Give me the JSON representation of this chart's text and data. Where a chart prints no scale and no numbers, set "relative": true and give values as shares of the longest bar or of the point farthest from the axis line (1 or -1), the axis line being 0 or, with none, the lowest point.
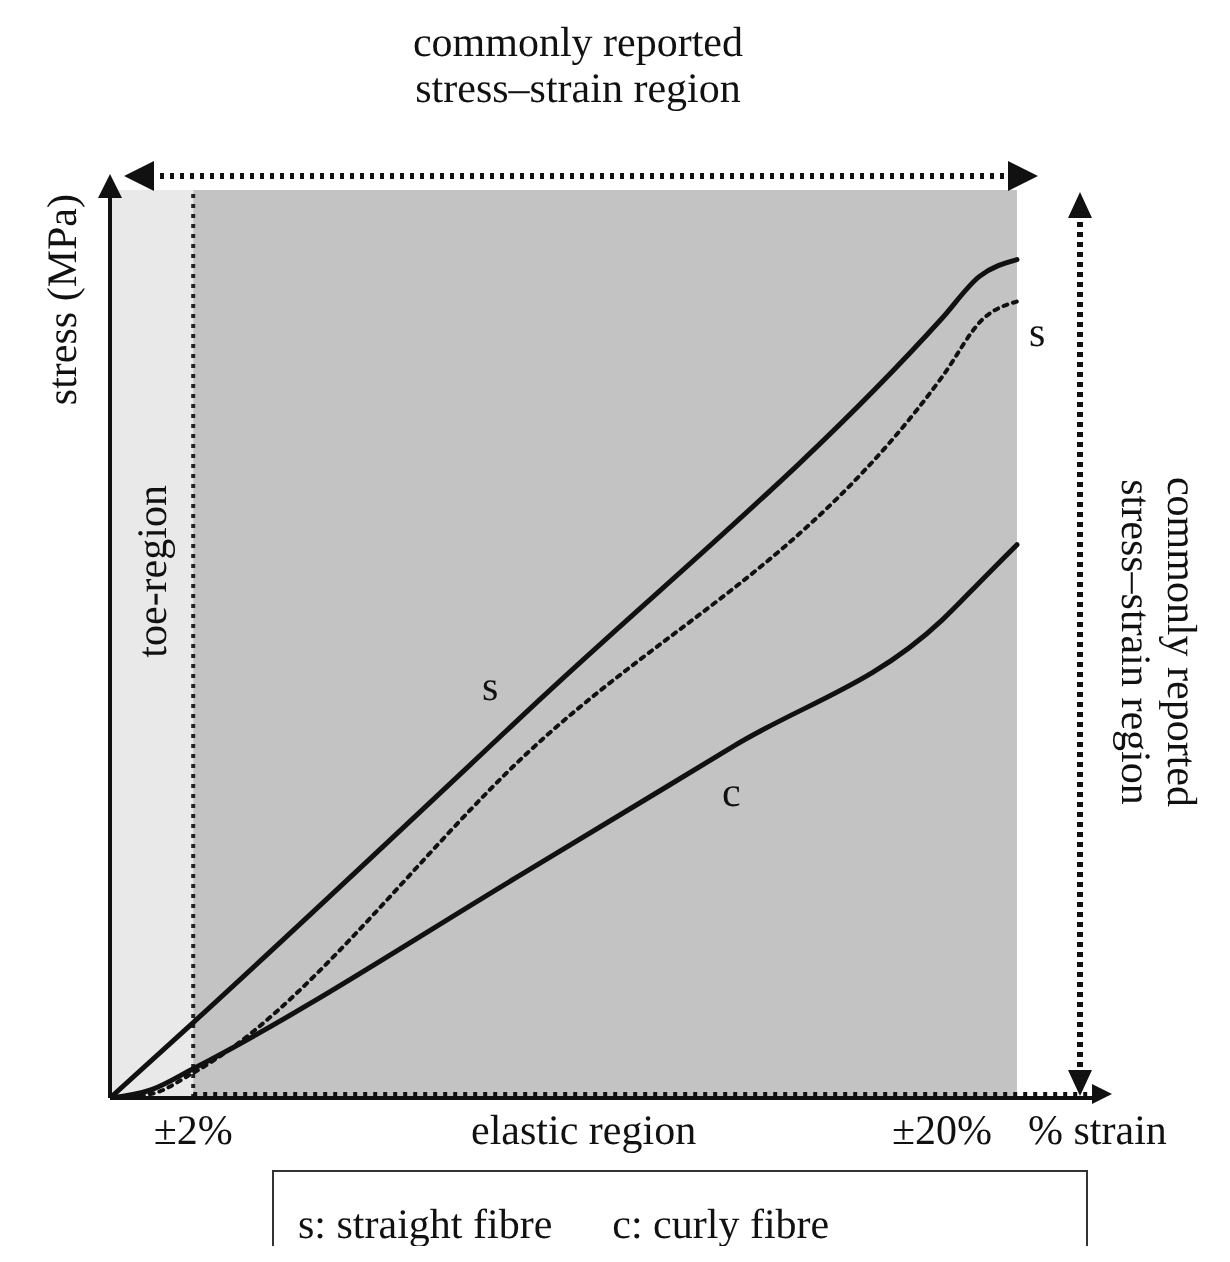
{
  "chart_data": {
    "type": "line",
    "relative": true,
    "xlabel": "% strain",
    "ylabel": "stress (MPa)",
    "xlim": [
      0,
      23.7
    ],
    "xticks": [
      {
        "value": 2,
        "label": "±2%"
      },
      {
        "value": 20,
        "label": "±20%"
      }
    ],
    "marker": "none",
    "series": [
      {
        "name": "s",
        "color": "#111111",
        "line_style": "solid",
        "x": [
          0,
          2,
          10,
          20,
          20.9,
          21.8
        ],
        "values": [
          0,
          0.09,
          0.46,
          0.93,
          0.98,
          1.0
        ]
      },
      {
        "name": "s",
        "color": "#111111",
        "line_style": "dotted",
        "x": [
          0,
          1,
          2,
          10,
          20,
          21,
          21.8
        ],
        "values": [
          0,
          0.005,
          0.03,
          0.41,
          0.86,
          0.93,
          0.95
        ]
      },
      {
        "name": "c",
        "color": "#111111",
        "line_style": "solid",
        "x": [
          0,
          1,
          2,
          10,
          15,
          20,
          21,
          21.8
        ],
        "values": [
          0,
          0.01,
          0.035,
          0.27,
          0.42,
          0.57,
          0.62,
          0.66
        ]
      }
    ],
    "bands": [
      {
        "axis": "x",
        "from": 0,
        "to": 2,
        "label": "toe-region",
        "color": "#e9e9e9"
      },
      {
        "axis": "x",
        "from": 2,
        "to": 21.8,
        "color": "#c3c3c3"
      }
    ],
    "ref_lines": [
      {
        "axis": "x",
        "value": 2,
        "color": "#222222",
        "line_style": "dotted"
      }
    ],
    "annotations": [
      "commonly reported stress–strain region",
      "commonly reported stress–strain region",
      "elastic region",
      "s: straight fibre",
      "c: curly fibre"
    ]
  }
}
